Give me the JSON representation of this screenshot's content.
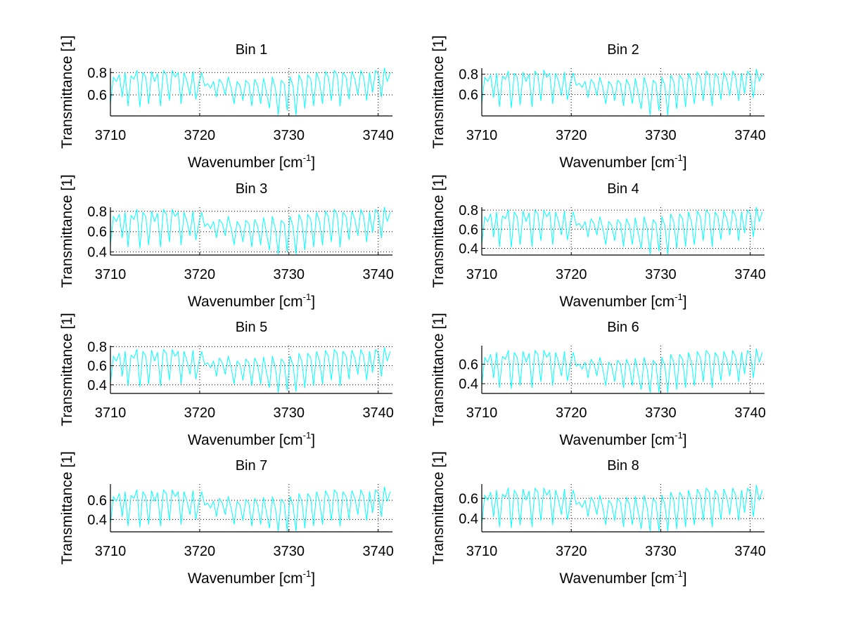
{
  "figure": {
    "background": "#ffffff",
    "line_color": "#00ffff"
  },
  "chart_data": [
    {
      "type": "line",
      "title": "Bin 1",
      "xlabel": "Wavenumber [cm-1]",
      "xlabel_main": "Wavenumber [cm",
      "xlabel_sup": "-1",
      "xlabel_end": "]",
      "ylabel": "Transmittance [1]",
      "xlim": [
        3710,
        3741.6
      ],
      "ylim": [
        0.41,
        0.84
      ],
      "xticks": [
        3710,
        3720,
        3730,
        3740
      ],
      "xtick_labels": [
        "3710",
        "3720",
        "3730",
        "3740"
      ],
      "yticks": [
        0.6,
        0.8
      ],
      "ytick_labels": [
        "0.6",
        "0.8"
      ],
      "grid": true,
      "x_start": 3710,
      "x_step": 0.33,
      "y": [
        0.52,
        0.76,
        0.72,
        0.78,
        0.58,
        0.8,
        0.5,
        0.77,
        0.74,
        0.82,
        0.49,
        0.8,
        0.76,
        0.52,
        0.81,
        0.72,
        0.79,
        0.5,
        0.82,
        0.78,
        0.55,
        0.82,
        0.76,
        0.8,
        0.52,
        0.8,
        0.72,
        0.6,
        0.81,
        0.56,
        0.7,
        0.8,
        0.68,
        0.7,
        0.66,
        0.72,
        0.58,
        0.74,
        0.7,
        0.6,
        0.76,
        0.66,
        0.52,
        0.72,
        0.68,
        0.55,
        0.73,
        0.7,
        0.5,
        0.74,
        0.68,
        0.52,
        0.75,
        0.62,
        0.48,
        0.76,
        0.66,
        0.42,
        0.73,
        0.7,
        0.46,
        0.76,
        0.68,
        0.42,
        0.78,
        0.72,
        0.48,
        0.78,
        0.74,
        0.5,
        0.8,
        0.72,
        0.52,
        0.81,
        0.76,
        0.55,
        0.82,
        0.78,
        0.5,
        0.8,
        0.76,
        0.56,
        0.81,
        0.74,
        0.6,
        0.82,
        0.76,
        0.55,
        0.8,
        0.62,
        0.82,
        0.78,
        0.58,
        0.84,
        0.72,
        0.8
      ]
    },
    {
      "type": "line",
      "title": "Bin 2",
      "xlabel": "Wavenumber [cm-1]",
      "xlabel_main": "Wavenumber [cm",
      "xlabel_sup": "-1",
      "xlabel_end": "]",
      "ylabel": "Transmittance [1]",
      "xlim": [
        3710,
        3741.6
      ],
      "ylim": [
        0.39,
        0.86
      ],
      "xticks": [
        3710,
        3720,
        3730,
        3740
      ],
      "xtick_labels": [
        "3710",
        "3720",
        "3730",
        "3740"
      ],
      "yticks": [
        0.6,
        0.8
      ],
      "ytick_labels": [
        "0.6",
        "0.8"
      ],
      "grid": true,
      "x_start": 3710,
      "x_step": 0.33,
      "y": [
        0.51,
        0.77,
        0.73,
        0.79,
        0.57,
        0.81,
        0.48,
        0.78,
        0.75,
        0.83,
        0.47,
        0.81,
        0.77,
        0.5,
        0.82,
        0.73,
        0.8,
        0.48,
        0.83,
        0.79,
        0.54,
        0.84,
        0.77,
        0.81,
        0.51,
        0.81,
        0.73,
        0.59,
        0.82,
        0.55,
        0.71,
        0.81,
        0.69,
        0.71,
        0.67,
        0.73,
        0.57,
        0.75,
        0.71,
        0.59,
        0.77,
        0.67,
        0.51,
        0.73,
        0.69,
        0.54,
        0.74,
        0.71,
        0.49,
        0.75,
        0.69,
        0.51,
        0.76,
        0.61,
        0.46,
        0.77,
        0.67,
        0.4,
        0.74,
        0.71,
        0.44,
        0.77,
        0.69,
        0.4,
        0.79,
        0.73,
        0.46,
        0.79,
        0.75,
        0.48,
        0.81,
        0.73,
        0.51,
        0.82,
        0.77,
        0.54,
        0.83,
        0.79,
        0.49,
        0.81,
        0.77,
        0.55,
        0.82,
        0.75,
        0.59,
        0.83,
        0.77,
        0.54,
        0.81,
        0.61,
        0.83,
        0.79,
        0.57,
        0.85,
        0.73,
        0.81
      ]
    },
    {
      "type": "line",
      "title": "Bin 3",
      "xlabel": "Wavenumber [cm-1]",
      "xlabel_main": "Wavenumber [cm",
      "xlabel_sup": "-1",
      "xlabel_end": "]",
      "ylabel": "Transmittance [1]",
      "xlim": [
        3710,
        3741.6
      ],
      "ylim": [
        0.37,
        0.84
      ],
      "xticks": [
        3710,
        3720,
        3730,
        3740
      ],
      "xtick_labels": [
        "3710",
        "3720",
        "3730",
        "3740"
      ],
      "yticks": [
        0.4,
        0.6,
        0.8
      ],
      "ytick_labels": [
        "0.4",
        "0.6",
        "0.8"
      ],
      "grid": true,
      "x_start": 3710,
      "x_step": 0.33,
      "y": [
        0.47,
        0.75,
        0.7,
        0.77,
        0.54,
        0.79,
        0.45,
        0.76,
        0.72,
        0.82,
        0.44,
        0.79,
        0.75,
        0.47,
        0.8,
        0.7,
        0.78,
        0.45,
        0.82,
        0.77,
        0.5,
        0.82,
        0.75,
        0.79,
        0.47,
        0.79,
        0.7,
        0.56,
        0.8,
        0.52,
        0.68,
        0.79,
        0.65,
        0.68,
        0.63,
        0.7,
        0.54,
        0.72,
        0.68,
        0.56,
        0.75,
        0.63,
        0.47,
        0.7,
        0.65,
        0.5,
        0.71,
        0.68,
        0.45,
        0.72,
        0.65,
        0.47,
        0.74,
        0.59,
        0.42,
        0.75,
        0.63,
        0.38,
        0.71,
        0.68,
        0.4,
        0.75,
        0.65,
        0.38,
        0.77,
        0.7,
        0.42,
        0.77,
        0.72,
        0.45,
        0.79,
        0.7,
        0.47,
        0.8,
        0.75,
        0.5,
        0.82,
        0.77,
        0.45,
        0.79,
        0.75,
        0.52,
        0.8,
        0.72,
        0.56,
        0.82,
        0.75,
        0.5,
        0.79,
        0.59,
        0.82,
        0.77,
        0.54,
        0.84,
        0.7,
        0.79
      ]
    },
    {
      "type": "line",
      "title": "Bin 4",
      "xlabel": "Wavenumber [cm-1]",
      "xlabel_main": "Wavenumber [cm",
      "xlabel_sup": "-1",
      "xlabel_end": "]",
      "ylabel": "Transmittance [1]",
      "xlim": [
        3710,
        3741.6
      ],
      "ylim": [
        0.33,
        0.83
      ],
      "xticks": [
        3710,
        3720,
        3730,
        3740
      ],
      "xtick_labels": [
        "3710",
        "3720",
        "3730",
        "3740"
      ],
      "yticks": [
        0.4,
        0.6,
        0.8
      ],
      "ytick_labels": [
        "0.4",
        "0.6",
        "0.8"
      ],
      "grid": true,
      "x_start": 3710,
      "x_step": 0.33,
      "y": [
        0.44,
        0.73,
        0.68,
        0.76,
        0.52,
        0.78,
        0.42,
        0.74,
        0.71,
        0.8,
        0.41,
        0.78,
        0.73,
        0.44,
        0.79,
        0.68,
        0.77,
        0.42,
        0.8,
        0.76,
        0.48,
        0.8,
        0.73,
        0.78,
        0.44,
        0.78,
        0.68,
        0.54,
        0.79,
        0.49,
        0.66,
        0.78,
        0.64,
        0.66,
        0.61,
        0.68,
        0.52,
        0.71,
        0.66,
        0.54,
        0.73,
        0.61,
        0.44,
        0.68,
        0.64,
        0.48,
        0.7,
        0.66,
        0.42,
        0.71,
        0.64,
        0.44,
        0.72,
        0.56,
        0.4,
        0.73,
        0.61,
        0.34,
        0.7,
        0.66,
        0.37,
        0.73,
        0.64,
        0.34,
        0.76,
        0.68,
        0.4,
        0.76,
        0.71,
        0.42,
        0.78,
        0.68,
        0.44,
        0.79,
        0.73,
        0.48,
        0.8,
        0.76,
        0.42,
        0.78,
        0.73,
        0.49,
        0.79,
        0.71,
        0.54,
        0.8,
        0.73,
        0.48,
        0.78,
        0.56,
        0.8,
        0.76,
        0.52,
        0.83,
        0.68,
        0.78
      ]
    },
    {
      "type": "line",
      "title": "Bin 5",
      "xlabel": "Wavenumber [cm-1]",
      "xlabel_main": "Wavenumber [cm",
      "xlabel_sup": "-1",
      "xlabel_end": "]",
      "ylabel": "Transmittance [1]",
      "xlim": [
        3710,
        3741.6
      ],
      "ylim": [
        0.31,
        0.81
      ],
      "xticks": [
        3710,
        3720,
        3730,
        3740
      ],
      "xtick_labels": [
        "3710",
        "3720",
        "3730",
        "3740"
      ],
      "yticks": [
        0.4,
        0.6,
        0.8
      ],
      "ytick_labels": [
        "0.4",
        "0.6",
        "0.8"
      ],
      "grid": true,
      "x_start": 3710,
      "x_step": 0.33,
      "y": [
        0.41,
        0.7,
        0.65,
        0.73,
        0.49,
        0.75,
        0.39,
        0.71,
        0.68,
        0.77,
        0.38,
        0.75,
        0.7,
        0.41,
        0.76,
        0.65,
        0.74,
        0.39,
        0.77,
        0.73,
        0.45,
        0.77,
        0.7,
        0.75,
        0.41,
        0.75,
        0.65,
        0.51,
        0.76,
        0.46,
        0.63,
        0.75,
        0.61,
        0.63,
        0.58,
        0.65,
        0.49,
        0.68,
        0.63,
        0.51,
        0.7,
        0.58,
        0.41,
        0.65,
        0.61,
        0.45,
        0.67,
        0.63,
        0.39,
        0.68,
        0.61,
        0.41,
        0.69,
        0.53,
        0.37,
        0.7,
        0.58,
        0.32,
        0.67,
        0.63,
        0.34,
        0.7,
        0.61,
        0.33,
        0.73,
        0.65,
        0.37,
        0.73,
        0.68,
        0.39,
        0.75,
        0.65,
        0.41,
        0.76,
        0.7,
        0.45,
        0.77,
        0.73,
        0.39,
        0.75,
        0.7,
        0.46,
        0.76,
        0.68,
        0.51,
        0.77,
        0.7,
        0.45,
        0.75,
        0.53,
        0.77,
        0.73,
        0.49,
        0.79,
        0.65,
        0.75
      ]
    },
    {
      "type": "line",
      "title": "Bin 6",
      "xlabel": "Wavenumber [cm-1]",
      "xlabel_main": "Wavenumber [cm",
      "xlabel_sup": "-1",
      "xlabel_end": "]",
      "ylabel": "Transmittance [1]",
      "xlim": [
        3710,
        3741.6
      ],
      "ylim": [
        0.3,
        0.79
      ],
      "xticks": [
        3710,
        3720,
        3730,
        3740
      ],
      "xtick_labels": [
        "3710",
        "3720",
        "3730",
        "3740"
      ],
      "yticks": [
        0.4,
        0.6
      ],
      "ytick_labels": [
        "0.4",
        "0.6"
      ],
      "grid": true,
      "x_start": 3710,
      "x_step": 0.33,
      "y": [
        0.38,
        0.67,
        0.62,
        0.7,
        0.46,
        0.72,
        0.36,
        0.68,
        0.65,
        0.74,
        0.35,
        0.72,
        0.67,
        0.38,
        0.73,
        0.62,
        0.71,
        0.36,
        0.74,
        0.7,
        0.42,
        0.74,
        0.67,
        0.72,
        0.38,
        0.72,
        0.62,
        0.48,
        0.73,
        0.43,
        0.6,
        0.72,
        0.58,
        0.6,
        0.55,
        0.62,
        0.46,
        0.65,
        0.6,
        0.48,
        0.67,
        0.55,
        0.38,
        0.62,
        0.58,
        0.42,
        0.64,
        0.6,
        0.36,
        0.65,
        0.58,
        0.38,
        0.66,
        0.5,
        0.34,
        0.67,
        0.55,
        0.31,
        0.64,
        0.6,
        0.31,
        0.67,
        0.58,
        0.31,
        0.7,
        0.62,
        0.34,
        0.7,
        0.65,
        0.36,
        0.72,
        0.62,
        0.38,
        0.73,
        0.67,
        0.42,
        0.74,
        0.7,
        0.36,
        0.72,
        0.67,
        0.43,
        0.73,
        0.65,
        0.48,
        0.74,
        0.67,
        0.42,
        0.72,
        0.5,
        0.74,
        0.7,
        0.46,
        0.76,
        0.62,
        0.72
      ]
    },
    {
      "type": "line",
      "title": "Bin 7",
      "xlabel": "Wavenumber [cm-1]",
      "xlabel_main": "Wavenumber [cm",
      "xlabel_sup": "-1",
      "xlabel_end": "]",
      "ylabel": "Transmittance [1]",
      "xlim": [
        3710,
        3741.6
      ],
      "ylim": [
        0.27,
        0.77
      ],
      "xticks": [
        3710,
        3720,
        3730,
        3740
      ],
      "xtick_labels": [
        "3710",
        "3720",
        "3730",
        "3740"
      ],
      "yticks": [
        0.4,
        0.6
      ],
      "ytick_labels": [
        "0.4",
        "0.6"
      ],
      "grid": true,
      "x_start": 3710,
      "x_step": 0.33,
      "y": [
        0.35,
        0.64,
        0.59,
        0.67,
        0.43,
        0.69,
        0.33,
        0.65,
        0.62,
        0.71,
        0.32,
        0.69,
        0.64,
        0.35,
        0.7,
        0.59,
        0.68,
        0.33,
        0.71,
        0.67,
        0.39,
        0.71,
        0.64,
        0.69,
        0.35,
        0.69,
        0.59,
        0.45,
        0.7,
        0.4,
        0.57,
        0.69,
        0.55,
        0.57,
        0.52,
        0.59,
        0.43,
        0.62,
        0.57,
        0.45,
        0.64,
        0.52,
        0.35,
        0.59,
        0.55,
        0.39,
        0.61,
        0.57,
        0.33,
        0.62,
        0.55,
        0.35,
        0.63,
        0.47,
        0.31,
        0.64,
        0.52,
        0.28,
        0.61,
        0.57,
        0.28,
        0.64,
        0.55,
        0.28,
        0.67,
        0.59,
        0.31,
        0.67,
        0.62,
        0.33,
        0.69,
        0.59,
        0.35,
        0.7,
        0.64,
        0.39,
        0.71,
        0.67,
        0.33,
        0.69,
        0.64,
        0.4,
        0.7,
        0.62,
        0.45,
        0.71,
        0.64,
        0.39,
        0.69,
        0.47,
        0.71,
        0.67,
        0.43,
        0.74,
        0.59,
        0.69
      ]
    },
    {
      "type": "line",
      "title": "Bin 8",
      "xlabel": "Wavenumber [cm-1]",
      "xlabel_main": "Wavenumber [cm",
      "xlabel_sup": "-1",
      "xlabel_end": "]",
      "ylabel": "Transmittance [1]",
      "xlim": [
        3710,
        3741.6
      ],
      "ylim": [
        0.27,
        0.74
      ],
      "xticks": [
        3710,
        3720,
        3730,
        3740
      ],
      "xtick_labels": [
        "3710",
        "3720",
        "3730",
        "3740"
      ],
      "yticks": [
        0.4,
        0.6
      ],
      "ytick_labels": [
        "0.4",
        "0.6"
      ],
      "grid": true,
      "x_start": 3710,
      "x_step": 0.33,
      "y": [
        0.34,
        0.63,
        0.58,
        0.66,
        0.42,
        0.68,
        0.32,
        0.64,
        0.61,
        0.7,
        0.31,
        0.68,
        0.63,
        0.34,
        0.69,
        0.58,
        0.67,
        0.32,
        0.7,
        0.66,
        0.38,
        0.7,
        0.63,
        0.68,
        0.34,
        0.68,
        0.58,
        0.44,
        0.69,
        0.39,
        0.56,
        0.68,
        0.54,
        0.56,
        0.51,
        0.58,
        0.42,
        0.61,
        0.56,
        0.44,
        0.63,
        0.51,
        0.34,
        0.58,
        0.54,
        0.38,
        0.6,
        0.56,
        0.32,
        0.61,
        0.54,
        0.34,
        0.62,
        0.46,
        0.3,
        0.63,
        0.51,
        0.28,
        0.6,
        0.56,
        0.28,
        0.63,
        0.54,
        0.28,
        0.66,
        0.58,
        0.3,
        0.66,
        0.61,
        0.32,
        0.68,
        0.58,
        0.34,
        0.69,
        0.63,
        0.38,
        0.7,
        0.66,
        0.32,
        0.68,
        0.63,
        0.39,
        0.69,
        0.61,
        0.44,
        0.7,
        0.63,
        0.38,
        0.68,
        0.46,
        0.7,
        0.66,
        0.42,
        0.73,
        0.58,
        0.68
      ]
    }
  ]
}
